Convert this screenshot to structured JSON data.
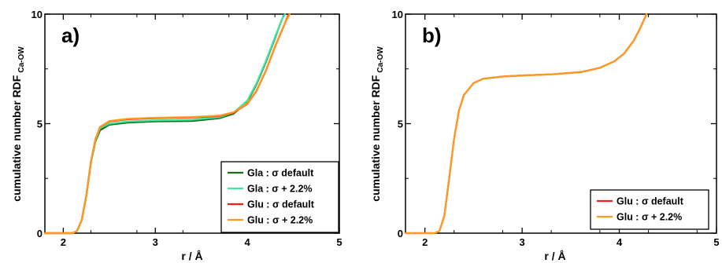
{
  "chart_data": [
    {
      "type": "line",
      "panel_label": "a)",
      "xlabel": "r / Å",
      "ylabel": "cumulative number RDF",
      "ylabel_sub": "Ca-OW",
      "xlim": [
        1.8,
        5.0
      ],
      "ylim": [
        0,
        10
      ],
      "xticks": [
        2,
        3,
        4,
        5
      ],
      "yticks": [
        0,
        5,
        10
      ],
      "legend_position": "bottom-right",
      "series": [
        {
          "name": "Gla : σ default",
          "color": "#1a6e1a",
          "points": [
            [
              1.8,
              0
            ],
            [
              2.1,
              0
            ],
            [
              2.15,
              0.1
            ],
            [
              2.2,
              0.6
            ],
            [
              2.25,
              1.7
            ],
            [
              2.3,
              3.2
            ],
            [
              2.35,
              4.2
            ],
            [
              2.4,
              4.7
            ],
            [
              2.5,
              4.95
            ],
            [
              2.7,
              5.05
            ],
            [
              3.0,
              5.1
            ],
            [
              3.4,
              5.12
            ],
            [
              3.7,
              5.25
            ],
            [
              3.85,
              5.45
            ],
            [
              4.0,
              6.0
            ],
            [
              4.1,
              6.8
            ],
            [
              4.2,
              7.8
            ],
            [
              4.3,
              8.9
            ],
            [
              4.37,
              9.7
            ],
            [
              4.4,
              10
            ]
          ]
        },
        {
          "name": "Gla : σ + 2.2%",
          "color": "#3ee6a0",
          "points": [
            [
              1.8,
              0
            ],
            [
              2.1,
              0
            ],
            [
              2.15,
              0.1
            ],
            [
              2.2,
              0.6
            ],
            [
              2.25,
              1.7
            ],
            [
              2.3,
              3.2
            ],
            [
              2.35,
              4.25
            ],
            [
              2.4,
              4.8
            ],
            [
              2.5,
              5.0
            ],
            [
              2.7,
              5.1
            ],
            [
              3.0,
              5.15
            ],
            [
              3.4,
              5.18
            ],
            [
              3.7,
              5.3
            ],
            [
              3.85,
              5.5
            ],
            [
              4.0,
              6.05
            ],
            [
              4.1,
              6.85
            ],
            [
              4.2,
              7.85
            ],
            [
              4.3,
              8.95
            ],
            [
              4.38,
              9.8
            ],
            [
              4.41,
              10
            ]
          ]
        },
        {
          "name": "Glu : σ default",
          "color": "#ff1a1a",
          "points": [
            [
              1.8,
              0
            ],
            [
              2.1,
              0
            ],
            [
              2.15,
              0.1
            ],
            [
              2.2,
              0.6
            ],
            [
              2.25,
              1.7
            ],
            [
              2.3,
              3.25
            ],
            [
              2.35,
              4.3
            ],
            [
              2.4,
              4.85
            ],
            [
              2.5,
              5.1
            ],
            [
              2.7,
              5.2
            ],
            [
              3.0,
              5.25
            ],
            [
              3.4,
              5.28
            ],
            [
              3.7,
              5.35
            ],
            [
              3.85,
              5.5
            ],
            [
              4.0,
              5.9
            ],
            [
              4.1,
              6.5
            ],
            [
              4.2,
              7.4
            ],
            [
              4.3,
              8.5
            ],
            [
              4.4,
              9.5
            ],
            [
              4.45,
              10
            ]
          ]
        },
        {
          "name": "Glu : σ + 2.2%",
          "color": "#ff9a1a",
          "points": [
            [
              1.8,
              0
            ],
            [
              2.1,
              0
            ],
            [
              2.15,
              0.1
            ],
            [
              2.2,
              0.6
            ],
            [
              2.25,
              1.7
            ],
            [
              2.3,
              3.25
            ],
            [
              2.35,
              4.3
            ],
            [
              2.4,
              4.85
            ],
            [
              2.5,
              5.12
            ],
            [
              2.7,
              5.22
            ],
            [
              3.0,
              5.27
            ],
            [
              3.4,
              5.3
            ],
            [
              3.7,
              5.37
            ],
            [
              3.85,
              5.52
            ],
            [
              4.0,
              5.92
            ],
            [
              4.1,
              6.52
            ],
            [
              4.2,
              7.42
            ],
            [
              4.3,
              8.52
            ],
            [
              4.4,
              9.52
            ],
            [
              4.46,
              10
            ]
          ]
        }
      ]
    },
    {
      "type": "line",
      "panel_label": "b)",
      "xlabel": "r / Å",
      "ylabel": "cumulative number RDF",
      "ylabel_sub": "Ca-OW",
      "xlim": [
        1.8,
        5.0
      ],
      "ylim": [
        0,
        10
      ],
      "xticks": [
        2,
        3,
        4,
        5
      ],
      "yticks": [
        0,
        5,
        10
      ],
      "legend_position": "bottom-right",
      "series": [
        {
          "name": "Glu : σ default",
          "color": "#ff1a1a",
          "points": [
            [
              1.8,
              0
            ],
            [
              2.1,
              0
            ],
            [
              2.15,
              0.1
            ],
            [
              2.2,
              0.8
            ],
            [
              2.25,
              2.5
            ],
            [
              2.3,
              4.3
            ],
            [
              2.35,
              5.6
            ],
            [
              2.4,
              6.3
            ],
            [
              2.5,
              6.85
            ],
            [
              2.6,
              7.05
            ],
            [
              2.8,
              7.15
            ],
            [
              3.0,
              7.2
            ],
            [
              3.3,
              7.25
            ],
            [
              3.6,
              7.35
            ],
            [
              3.8,
              7.55
            ],
            [
              3.95,
              7.85
            ],
            [
              4.05,
              8.2
            ],
            [
              4.15,
              8.8
            ],
            [
              4.22,
              9.4
            ],
            [
              4.28,
              10
            ]
          ]
        },
        {
          "name": "Glu : σ + 2.2%",
          "color": "#ff9a1a",
          "points": [
            [
              1.8,
              0
            ],
            [
              2.1,
              0
            ],
            [
              2.15,
              0.1
            ],
            [
              2.2,
              0.8
            ],
            [
              2.25,
              2.5
            ],
            [
              2.3,
              4.3
            ],
            [
              2.35,
              5.6
            ],
            [
              2.4,
              6.3
            ],
            [
              2.5,
              6.85
            ],
            [
              2.6,
              7.05
            ],
            [
              2.8,
              7.15
            ],
            [
              3.0,
              7.2
            ],
            [
              3.3,
              7.25
            ],
            [
              3.6,
              7.35
            ],
            [
              3.8,
              7.55
            ],
            [
              3.95,
              7.85
            ],
            [
              4.05,
              8.2
            ],
            [
              4.15,
              8.8
            ],
            [
              4.22,
              9.4
            ],
            [
              4.28,
              10
            ]
          ]
        }
      ]
    }
  ]
}
